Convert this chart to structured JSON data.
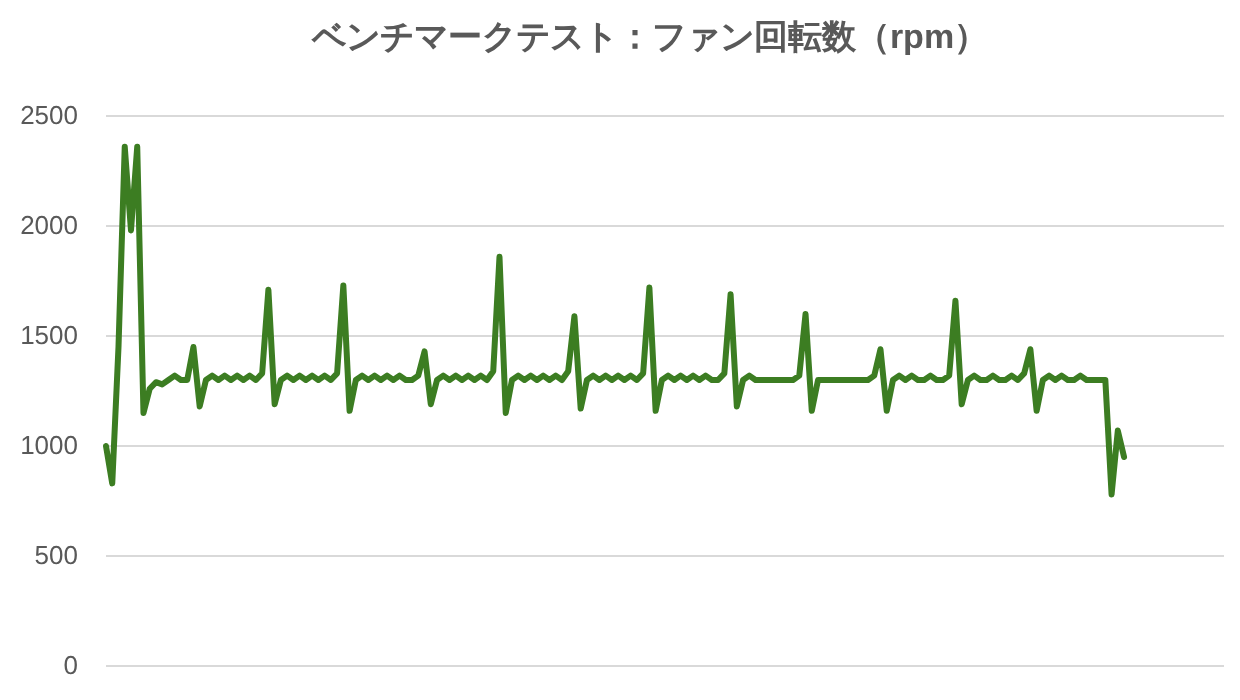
{
  "chart_data": {
    "type": "line",
    "title": "ベンチマークテスト：ファン回転数（rpm）",
    "categories": [
      null,
      null,
      null,
      null,
      null,
      null,
      null,
      null,
      null,
      null,
      null,
      null,
      null,
      null,
      null,
      null,
      null,
      null,
      null,
      null,
      null,
      null,
      null,
      null,
      null,
      null,
      null,
      null,
      null,
      null,
      null,
      null,
      null,
      null,
      null,
      null,
      null,
      null,
      null,
      null,
      null,
      null,
      null,
      null,
      null,
      null,
      null,
      null,
      null,
      null,
      null,
      null,
      null,
      null,
      null,
      null,
      null,
      null,
      null,
      null,
      null,
      null,
      null,
      null,
      null,
      null,
      null,
      null,
      null,
      null,
      null,
      null,
      null,
      null,
      null,
      null,
      null,
      null,
      null,
      null,
      null,
      null,
      null,
      null,
      null,
      null,
      null,
      null,
      null,
      null,
      null,
      null,
      null,
      null,
      null,
      null,
      null,
      null,
      null,
      null,
      null,
      null,
      null,
      null,
      null,
      null,
      null,
      null,
      null,
      null,
      null,
      null,
      null,
      null,
      null,
      null,
      null,
      null,
      null,
      null,
      null,
      null,
      null,
      null,
      null,
      null,
      null,
      null,
      null,
      null,
      null,
      null,
      null,
      null,
      null,
      null,
      null,
      null,
      null,
      null,
      null,
      null,
      null,
      null,
      null,
      null,
      null,
      null,
      null,
      null,
      null,
      null,
      null,
      null,
      null,
      null,
      null,
      null,
      null,
      null,
      null,
      null,
      null,
      null,
      null,
      null,
      null,
      null,
      null,
      null,
      null,
      null,
      null,
      null,
      null,
      null,
      null,
      null,
      null,
      null
    ],
    "series": [
      {
        "color": "#3c7d22",
        "values": [
          1000,
          830,
          1450,
          2360,
          1980,
          2360,
          1150,
          1260,
          1290,
          1280,
          1300,
          1320,
          1300,
          1300,
          1450,
          1180,
          1300,
          1320,
          1300,
          1320,
          1300,
          1320,
          1300,
          1320,
          1300,
          1330,
          1710,
          1190,
          1300,
          1320,
          1300,
          1320,
          1300,
          1320,
          1300,
          1320,
          1300,
          1330,
          1730,
          1160,
          1300,
          1320,
          1300,
          1320,
          1300,
          1320,
          1300,
          1320,
          1300,
          1300,
          1320,
          1430,
          1190,
          1300,
          1320,
          1300,
          1320,
          1300,
          1320,
          1300,
          1320,
          1300,
          1340,
          1860,
          1150,
          1300,
          1320,
          1300,
          1320,
          1300,
          1320,
          1300,
          1320,
          1300,
          1340,
          1590,
          1170,
          1300,
          1320,
          1300,
          1320,
          1300,
          1320,
          1300,
          1320,
          1300,
          1330,
          1720,
          1160,
          1300,
          1320,
          1300,
          1320,
          1300,
          1320,
          1300,
          1320,
          1300,
          1300,
          1330,
          1690,
          1180,
          1300,
          1320,
          1300,
          1300,
          1300,
          1300,
          1300,
          1300,
          1300,
          1320,
          1600,
          1160,
          1300,
          1300,
          1300,
          1300,
          1300,
          1300,
          1300,
          1300,
          1300,
          1320,
          1440,
          1160,
          1300,
          1320,
          1300,
          1320,
          1300,
          1300,
          1320,
          1300,
          1300,
          1320,
          1660,
          1190,
          1300,
          1320,
          1300,
          1300,
          1320,
          1300,
          1300,
          1320,
          1300,
          1330,
          1440,
          1160,
          1300,
          1320,
          1300,
          1320,
          1300,
          1300,
          1320,
          1300,
          1300,
          1300,
          1300,
          780,
          1070,
          950,
          null,
          null,
          null,
          null,
          null,
          null,
          null,
          null,
          null,
          null,
          null,
          null,
          null,
          null,
          null,
          null
        ]
      }
    ],
    "ylim": [
      0,
      2500
    ],
    "yticks": [
      0,
      500,
      1000,
      1500,
      2000,
      2500
    ],
    "grid": "y",
    "tick_labels": "y",
    "marker": "none",
    "line_style": "solid"
  }
}
